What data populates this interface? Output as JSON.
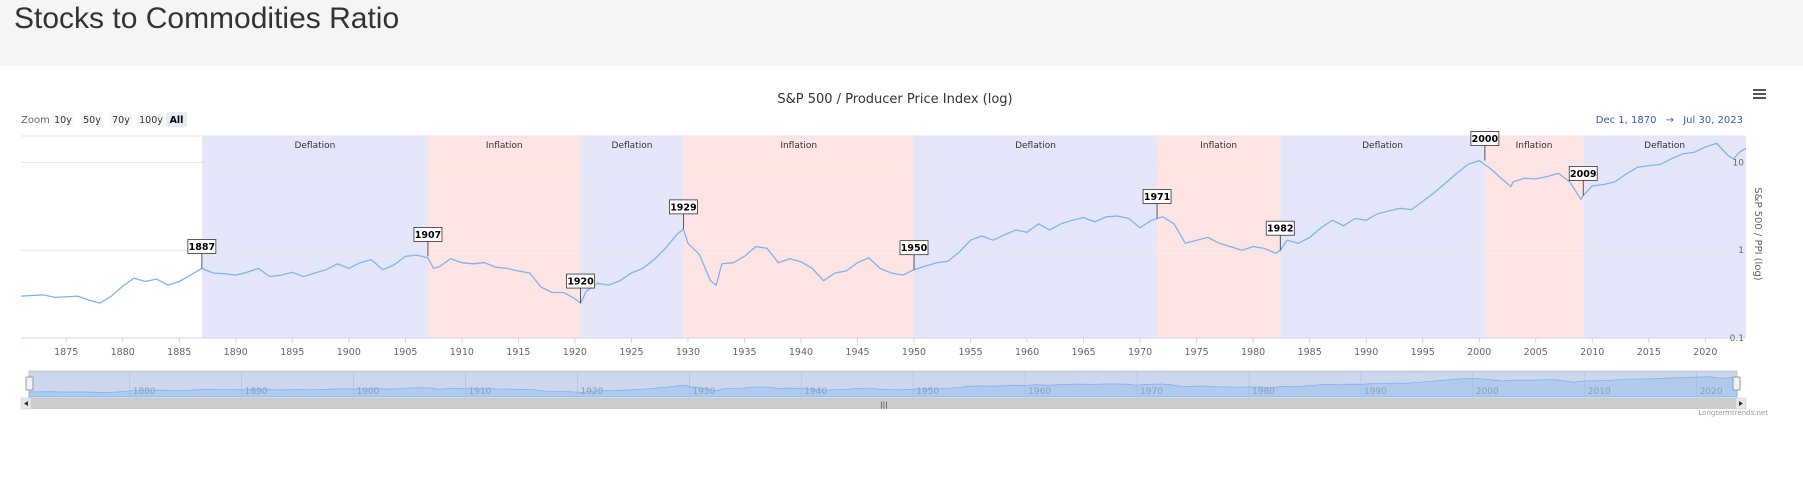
{
  "page": {
    "title": "Stocks to Commodities Ratio"
  },
  "chart_data": {
    "type": "line",
    "title": "S&P 500 / Producer Price Index (log)",
    "ylabel": "S&P 500 / PPI (log)",
    "y_scale": "log",
    "ylim": [
      0.1,
      20
    ],
    "xlim": [
      1871.0,
      2023.6
    ],
    "y_ticks": [
      {
        "v": 0.1,
        "label": "0.1"
      },
      {
        "v": 1,
        "label": "1"
      },
      {
        "v": 10,
        "label": "10"
      }
    ],
    "x_ticks": [
      1875,
      1880,
      1885,
      1890,
      1895,
      1900,
      1905,
      1910,
      1915,
      1920,
      1925,
      1930,
      1935,
      1940,
      1945,
      1950,
      1955,
      1960,
      1965,
      1970,
      1975,
      1980,
      1985,
      1990,
      1995,
      2000,
      2005,
      2010,
      2015,
      2020
    ],
    "grid": "horizontal",
    "line_color": "#7cb5ec",
    "bands": [
      {
        "label": "Deflation",
        "from": 1887.0,
        "to": 1907.0,
        "kind": "deflation"
      },
      {
        "label": "Inflation",
        "from": 1907.0,
        "to": 1920.5,
        "kind": "inflation"
      },
      {
        "label": "Deflation",
        "from": 1920.5,
        "to": 1929.6,
        "kind": "deflation"
      },
      {
        "label": "Inflation",
        "from": 1929.6,
        "to": 1950.0,
        "kind": "inflation"
      },
      {
        "label": "Deflation",
        "from": 1950.0,
        "to": 1971.5,
        "kind": "deflation"
      },
      {
        "label": "Inflation",
        "from": 1971.5,
        "to": 1982.4,
        "kind": "inflation"
      },
      {
        "label": "Deflation",
        "from": 1982.4,
        "to": 2000.5,
        "kind": "deflation"
      },
      {
        "label": "Inflation",
        "from": 2000.5,
        "to": 2009.2,
        "kind": "inflation"
      },
      {
        "label": "Deflation",
        "from": 2009.2,
        "to": 2023.6,
        "kind": "deflation"
      }
    ],
    "band_colors": {
      "deflation": "#e6e6fa",
      "inflation": "#ffe4e4"
    },
    "flags": [
      {
        "label": "1887",
        "x": 1887.0,
        "y": 0.62
      },
      {
        "label": "1907",
        "x": 1907.0,
        "y": 0.85
      },
      {
        "label": "1920",
        "x": 1920.5,
        "y": 0.25
      },
      {
        "label": "1929",
        "x": 1929.6,
        "y": 1.75
      },
      {
        "label": "1950",
        "x": 1950.0,
        "y": 0.6
      },
      {
        "label": "1971",
        "x": 1971.5,
        "y": 2.3
      },
      {
        "label": "1982",
        "x": 1982.4,
        "y": 1.0
      },
      {
        "label": "2000",
        "x": 2000.5,
        "y": 10.5
      },
      {
        "label": "2009",
        "x": 2009.2,
        "y": 4.2
      }
    ],
    "series": [
      {
        "values": [
          [
            1871.0,
            0.3
          ],
          [
            1873.0,
            0.31
          ],
          [
            1874.0,
            0.29
          ],
          [
            1876.0,
            0.3
          ],
          [
            1877.0,
            0.27
          ],
          [
            1878.0,
            0.25
          ],
          [
            1879.0,
            0.3
          ],
          [
            1880.0,
            0.39
          ],
          [
            1881.0,
            0.48
          ],
          [
            1882.0,
            0.44
          ],
          [
            1883.0,
            0.47
          ],
          [
            1884.0,
            0.4
          ],
          [
            1885.0,
            0.44
          ],
          [
            1886.0,
            0.52
          ],
          [
            1887.0,
            0.62
          ],
          [
            1888.0,
            0.55
          ],
          [
            1889.0,
            0.54
          ],
          [
            1890.0,
            0.52
          ],
          [
            1891.0,
            0.56
          ],
          [
            1892.0,
            0.62
          ],
          [
            1893.0,
            0.5
          ],
          [
            1894.0,
            0.52
          ],
          [
            1895.0,
            0.56
          ],
          [
            1896.0,
            0.5
          ],
          [
            1897.0,
            0.55
          ],
          [
            1898.0,
            0.6
          ],
          [
            1899.0,
            0.7
          ],
          [
            1900.0,
            0.62
          ],
          [
            1901.0,
            0.72
          ],
          [
            1902.0,
            0.78
          ],
          [
            1903.0,
            0.6
          ],
          [
            1904.0,
            0.68
          ],
          [
            1905.0,
            0.85
          ],
          [
            1906.0,
            0.88
          ],
          [
            1907.0,
            0.82
          ],
          [
            1907.5,
            0.62
          ],
          [
            1908.0,
            0.65
          ],
          [
            1909.0,
            0.8
          ],
          [
            1910.0,
            0.72
          ],
          [
            1911.0,
            0.7
          ],
          [
            1912.0,
            0.72
          ],
          [
            1913.0,
            0.64
          ],
          [
            1914.0,
            0.62
          ],
          [
            1915.0,
            0.58
          ],
          [
            1916.0,
            0.55
          ],
          [
            1917.0,
            0.38
          ],
          [
            1918.0,
            0.33
          ],
          [
            1919.0,
            0.33
          ],
          [
            1920.0,
            0.28
          ],
          [
            1920.5,
            0.25
          ],
          [
            1921.0,
            0.34
          ],
          [
            1922.0,
            0.42
          ],
          [
            1923.0,
            0.4
          ],
          [
            1924.0,
            0.45
          ],
          [
            1925.0,
            0.55
          ],
          [
            1926.0,
            0.62
          ],
          [
            1927.0,
            0.78
          ],
          [
            1928.0,
            1.05
          ],
          [
            1929.0,
            1.5
          ],
          [
            1929.6,
            1.75
          ],
          [
            1930.0,
            1.2
          ],
          [
            1931.0,
            0.9
          ],
          [
            1932.0,
            0.45
          ],
          [
            1932.5,
            0.4
          ],
          [
            1933.0,
            0.7
          ],
          [
            1934.0,
            0.72
          ],
          [
            1935.0,
            0.85
          ],
          [
            1936.0,
            1.1
          ],
          [
            1937.0,
            1.05
          ],
          [
            1938.0,
            0.72
          ],
          [
            1939.0,
            0.8
          ],
          [
            1940.0,
            0.74
          ],
          [
            1941.0,
            0.62
          ],
          [
            1942.0,
            0.45
          ],
          [
            1943.0,
            0.55
          ],
          [
            1944.0,
            0.58
          ],
          [
            1945.0,
            0.72
          ],
          [
            1946.0,
            0.82
          ],
          [
            1947.0,
            0.62
          ],
          [
            1948.0,
            0.55
          ],
          [
            1949.0,
            0.52
          ],
          [
            1950.0,
            0.6
          ],
          [
            1951.0,
            0.66
          ],
          [
            1952.0,
            0.72
          ],
          [
            1953.0,
            0.75
          ],
          [
            1954.0,
            0.95
          ],
          [
            1955.0,
            1.3
          ],
          [
            1956.0,
            1.45
          ],
          [
            1957.0,
            1.3
          ],
          [
            1958.0,
            1.5
          ],
          [
            1959.0,
            1.7
          ],
          [
            1960.0,
            1.6
          ],
          [
            1961.0,
            2.0
          ],
          [
            1962.0,
            1.7
          ],
          [
            1963.0,
            2.0
          ],
          [
            1964.0,
            2.2
          ],
          [
            1965.0,
            2.35
          ],
          [
            1966.0,
            2.1
          ],
          [
            1967.0,
            2.4
          ],
          [
            1968.0,
            2.45
          ],
          [
            1969.0,
            2.3
          ],
          [
            1970.0,
            1.8
          ],
          [
            1971.0,
            2.2
          ],
          [
            1971.5,
            2.3
          ],
          [
            1972.0,
            2.4
          ],
          [
            1973.0,
            2.0
          ],
          [
            1974.0,
            1.2
          ],
          [
            1975.0,
            1.3
          ],
          [
            1976.0,
            1.4
          ],
          [
            1977.0,
            1.2
          ],
          [
            1978.0,
            1.1
          ],
          [
            1979.0,
            1.0
          ],
          [
            1980.0,
            1.1
          ],
          [
            1981.0,
            1.05
          ],
          [
            1982.0,
            0.92
          ],
          [
            1982.4,
            1.0
          ],
          [
            1983.0,
            1.3
          ],
          [
            1984.0,
            1.2
          ],
          [
            1985.0,
            1.4
          ],
          [
            1986.0,
            1.8
          ],
          [
            1987.0,
            2.2
          ],
          [
            1988.0,
            1.9
          ],
          [
            1989.0,
            2.3
          ],
          [
            1990.0,
            2.2
          ],
          [
            1991.0,
            2.6
          ],
          [
            1992.0,
            2.8
          ],
          [
            1993.0,
            3.0
          ],
          [
            1994.0,
            2.9
          ],
          [
            1995.0,
            3.6
          ],
          [
            1996.0,
            4.5
          ],
          [
            1997.0,
            5.8
          ],
          [
            1998.0,
            7.5
          ],
          [
            1999.0,
            9.5
          ],
          [
            2000.0,
            10.5
          ],
          [
            2001.0,
            8.5
          ],
          [
            2002.0,
            6.5
          ],
          [
            2002.8,
            5.3
          ],
          [
            2003.0,
            6.0
          ],
          [
            2004.0,
            6.6
          ],
          [
            2005.0,
            6.5
          ],
          [
            2006.0,
            6.9
          ],
          [
            2007.0,
            7.5
          ],
          [
            2008.0,
            6.0
          ],
          [
            2009.0,
            3.8
          ],
          [
            2009.2,
            4.2
          ],
          [
            2010.0,
            5.4
          ],
          [
            2011.0,
            5.6
          ],
          [
            2012.0,
            6.0
          ],
          [
            2013.0,
            7.4
          ],
          [
            2014.0,
            8.8
          ],
          [
            2015.0,
            9.2
          ],
          [
            2016.0,
            9.5
          ],
          [
            2017.0,
            11.0
          ],
          [
            2018.0,
            12.5
          ],
          [
            2019.0,
            13.0
          ],
          [
            2020.0,
            15.0
          ],
          [
            2021.0,
            16.5
          ],
          [
            2022.0,
            12.0
          ],
          [
            2022.5,
            11.0
          ],
          [
            2023.0,
            13.0
          ],
          [
            2023.6,
            14.5
          ]
        ]
      }
    ]
  },
  "controls": {
    "zoom_label": "Zoom",
    "zoom_buttons": [
      "10y",
      "50y",
      "70y",
      "100y",
      "All"
    ],
    "zoom_selected": "All",
    "range_from": "Dec 1, 1870",
    "range_arrow": "→",
    "range_to": "Jul 30, 2023",
    "menu_icon": "hamburger-menu-icon"
  },
  "navigator": {
    "ticks": [
      "1880",
      "1890",
      "1900",
      "1910",
      "1920",
      "1930",
      "1940",
      "1950",
      "1960",
      "1970",
      "1980",
      "1990",
      "2000",
      "2010",
      "2020"
    ],
    "grip": "|||"
  },
  "credits": "Longtermtrends.net"
}
